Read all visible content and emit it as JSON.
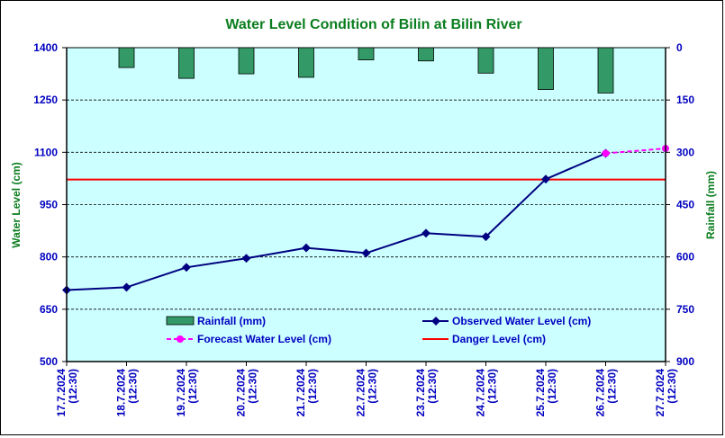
{
  "chart_data": {
    "type": "line",
    "title": "Water Level Condition of Bilin at Bilin River",
    "ylabel": "Water Level (cm)",
    "y2label": "Rainfall (mm)",
    "ylim": [
      500,
      1400
    ],
    "y2lim": [
      0,
      900
    ],
    "y2_inverted": true,
    "yticks": [
      500,
      650,
      800,
      950,
      1100,
      1250,
      1400
    ],
    "y2ticks": [
      0,
      150,
      300,
      450,
      600,
      750,
      900
    ],
    "grid": true,
    "categories": [
      [
        "17.7.2024",
        "(12:30)"
      ],
      [
        "18.7.2024",
        "(12:30)"
      ],
      [
        "19.7.2024",
        "(12:30)"
      ],
      [
        "20.7.2024",
        "(12:30)"
      ],
      [
        "21.7.2024",
        "(12:30)"
      ],
      [
        "22.7.2024",
        "(12:30)"
      ],
      [
        "23.7.2024",
        "(12:30)"
      ],
      [
        "24.7.2024",
        "(12:30)"
      ],
      [
        "25.7.2024",
        "(12:30)"
      ],
      [
        "26.7.2024",
        "(12:30)"
      ],
      [
        "27.7.2024",
        "(12:30)"
      ]
    ],
    "series": [
      {
        "name": "Rainfall (mm)",
        "kind": "bar",
        "axis": "right",
        "color": "#339966",
        "values": [
          null,
          57,
          88,
          75,
          85,
          35,
          38,
          73,
          120,
          130,
          null
        ]
      },
      {
        "name": "Observed Water Level (cm)",
        "kind": "line",
        "axis": "left",
        "color": "#000080",
        "values": [
          705,
          713,
          770,
          796,
          826,
          811,
          868,
          858,
          1023,
          1097,
          null
        ]
      },
      {
        "name": "Forecast Water Level (cm)",
        "kind": "dashed-line",
        "axis": "left",
        "color": "#ff00ff",
        "values": [
          null,
          null,
          null,
          null,
          null,
          null,
          null,
          null,
          null,
          1097,
          1111
        ]
      },
      {
        "name": "Danger Level (cm)",
        "kind": "hline",
        "axis": "left",
        "color": "#ff0000",
        "value": 1022
      }
    ],
    "legend": {
      "placement": "bottom-center",
      "entries": [
        "Rainfall (mm)",
        "Observed Water Level (cm)",
        "Forecast Water Level (cm)",
        "Danger Level (cm)"
      ]
    },
    "colors": {
      "plot_background": "#ccffff",
      "axis_text": "#0000c0",
      "axis_title": "#0a7d1e"
    }
  }
}
